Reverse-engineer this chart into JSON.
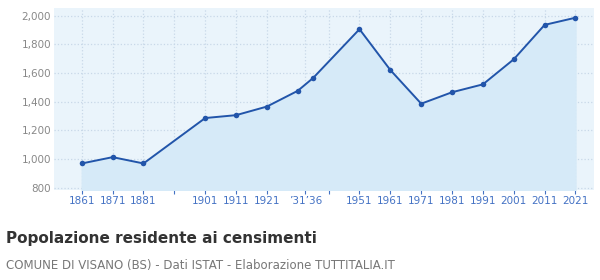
{
  "years": [
    1861,
    1871,
    1881,
    1901,
    1911,
    1921,
    1931,
    1936,
    1951,
    1961,
    1971,
    1981,
    1991,
    2001,
    2011,
    2021
  ],
  "population": [
    968,
    1012,
    968,
    1285,
    1305,
    1365,
    1475,
    1565,
    1905,
    1620,
    1385,
    1465,
    1520,
    1695,
    1935,
    1985
  ],
  "x_labels": [
    "1861",
    "1871",
    "1881",
    "",
    "1901",
    "1911",
    "1921",
    "’31’36",
    "",
    "1951",
    "1961",
    "1971",
    "1981",
    "1991",
    "2001",
    "2011",
    "2021"
  ],
  "x_tick_positions": [
    1861,
    1871,
    1881,
    1891,
    1901,
    1911,
    1921,
    1933.5,
    1941,
    1951,
    1961,
    1971,
    1981,
    1991,
    2001,
    2011,
    2021
  ],
  "ylim": [
    780,
    2050
  ],
  "yticks": [
    800,
    1000,
    1200,
    1400,
    1600,
    1800,
    2000
  ],
  "line_color": "#2255aa",
  "fill_color": "#d6eaf8",
  "marker_color": "#2255aa",
  "grid_color": "#c8d8e8",
  "bg_color": "#eaf4fb",
  "title": "Popolazione residente ai censimenti",
  "subtitle": "COMUNE DI VISANO (BS) - Dati ISTAT - Elaborazione TUTTITALIA.IT",
  "title_fontsize": 11,
  "subtitle_fontsize": 8.5,
  "label_color": "#4472c4",
  "ytick_color": "#888888"
}
